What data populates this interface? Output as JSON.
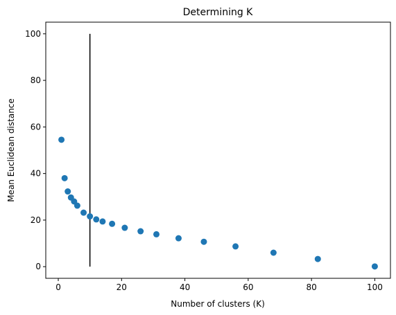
{
  "chart_data": {
    "type": "scatter",
    "title": "Determining K",
    "xlabel": "Number of clusters (K)",
    "ylabel": "Mean Euclidean distance",
    "x": [
      1,
      2,
      3,
      4,
      5,
      6,
      8,
      10,
      12,
      14,
      17,
      21,
      26,
      31,
      38,
      46,
      56,
      68,
      82,
      100
    ],
    "values": [
      54.5,
      38,
      32.3,
      29.7,
      28,
      26.2,
      23.2,
      21.6,
      20.3,
      19.4,
      18.4,
      16.7,
      15.2,
      13.9,
      12.2,
      10.7,
      8.7,
      6,
      3.3,
      0.1
    ],
    "color": "#1f77b4",
    "vline": {
      "x": 10,
      "ymin": 0,
      "ymax": 100,
      "color": "#000000"
    },
    "xlim": [
      -3.95,
      104.95
    ],
    "ylim": [
      -5,
      105
    ],
    "xticks": [
      0,
      20,
      40,
      60,
      80,
      100
    ],
    "yticks": [
      0,
      20,
      40,
      60,
      80,
      100
    ]
  }
}
